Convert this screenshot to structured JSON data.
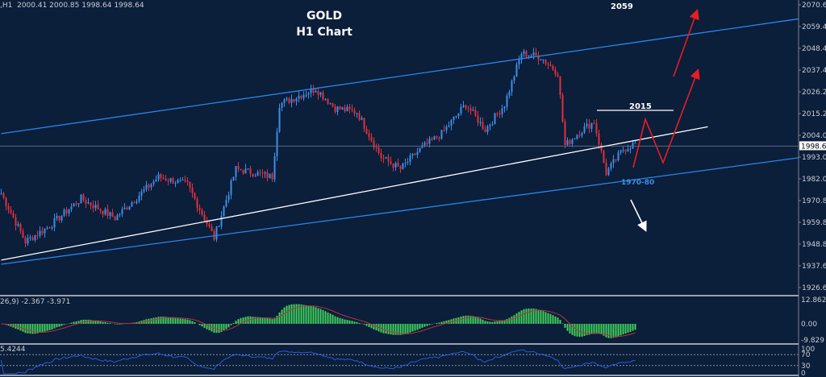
{
  "header": {
    "symbol_info": ",H1",
    "ohlc": "2000.41 2000.85 1998.64 1998.64"
  },
  "titles": {
    "line1": "GOLD",
    "line2": "H1 Chart"
  },
  "annotations": {
    "target_top": "2059",
    "resistance": "2015",
    "support_zone": "1970-80"
  },
  "macd": {
    "label": "26,9) -2.367 -3.971",
    "ticks": [
      "12.862",
      "0.00",
      "-9.829"
    ]
  },
  "rsi": {
    "label": "5.4244",
    "ticks": [
      "100",
      "70",
      "30",
      "0"
    ]
  },
  "colors": {
    "bg": "#0b1e3a",
    "bull": "#3d8fe6",
    "bear": "#e0303a",
    "channel": "#2a86e8",
    "trend": "#ffffff",
    "arrow": "#e81c24",
    "macd_hist": "#3fd25a",
    "rsi": "#2a5ad8"
  },
  "chart_data": {
    "type": "candlestick",
    "title": "GOLD H1 Chart",
    "ylim": [
      1926.6,
      2070.6
    ],
    "y_ticks": [
      "2070.60",
      "2059.40",
      "2048.40",
      "2037.40",
      "2026.20",
      "2015.20",
      "2004.00",
      "1993.00",
      "1982.00",
      "1970.80",
      "1959.80",
      "1948.80",
      "1937.60",
      "1926.60"
    ],
    "last_price": "1998.64",
    "path_bars": [
      0,
      10,
      20,
      33,
      47,
      65,
      77,
      88,
      97,
      112,
      115,
      130,
      138,
      147,
      157,
      165,
      173,
      182,
      192,
      200,
      208,
      215,
      223,
      230,
      233,
      240,
      245,
      250,
      257,
      262
    ],
    "path_prices": [
      1974.6,
      1950,
      1958,
      1972,
      1962,
      1983,
      1979,
      1952,
      1987,
      1983,
      2020,
      2028,
      2018,
      2016,
      1993,
      1987,
      1997,
      2005,
      2020,
      2007,
      2020,
      2046,
      2044,
      2036,
      1999,
      2007,
      2011,
      1985,
      1997,
      2000
    ],
    "channel_upper": [
      [
        0,
        2005
      ],
      [
        341,
        2065.4
      ]
    ],
    "channel_lower": [
      [
        0,
        1938.5
      ],
      [
        341,
        1994.5
      ]
    ],
    "trendline": [
      [
        0,
        1940.6
      ],
      [
        292,
        2008.5
      ]
    ]
  }
}
